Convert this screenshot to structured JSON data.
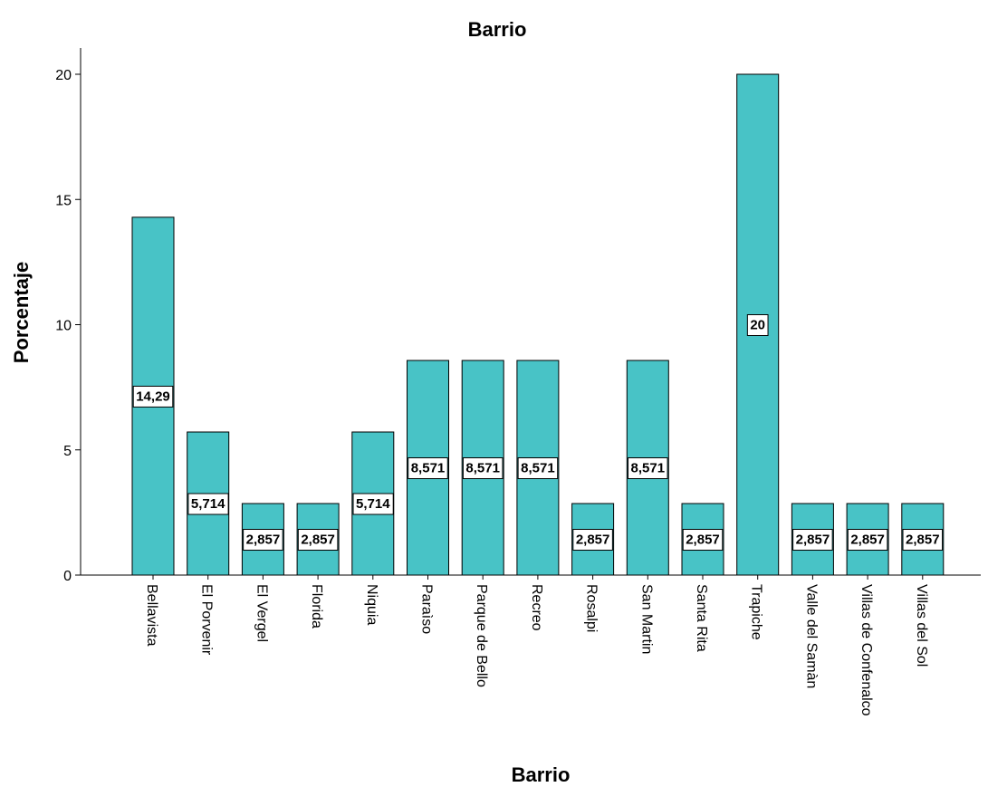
{
  "chart_data": {
    "type": "bar",
    "title": "Barrio",
    "xlabel": "Barrio",
    "ylabel": "Porcentaje",
    "ylim": [
      0,
      20
    ],
    "yticks": [
      "0",
      "5",
      "10",
      "15",
      "20"
    ],
    "grid": false,
    "legend": "none",
    "bar_color": "#48C3C6",
    "categories": [
      "Bellavista",
      "El Porvenir",
      "El Vergel",
      "Florida",
      "Niquia",
      "Paraìso",
      "Parque de Bello",
      "Recreo",
      "Rosalpi",
      "San Martin",
      "Santa Rita",
      "Trapiche",
      "Valle del Samàn",
      "Villas de Confenalco",
      "Villas del Sol"
    ],
    "values": [
      14.29,
      5.714,
      2.857,
      2.857,
      5.714,
      8.571,
      8.571,
      8.571,
      2.857,
      8.571,
      2.857,
      20,
      2.857,
      2.857,
      2.857
    ],
    "data_labels": [
      "14,29",
      "5,714",
      "2,857",
      "2,857",
      "5,714",
      "8,571",
      "8,571",
      "8,571",
      "2,857",
      "8,571",
      "2,857",
      "20",
      "2,857",
      "2,857",
      "2,857"
    ]
  }
}
